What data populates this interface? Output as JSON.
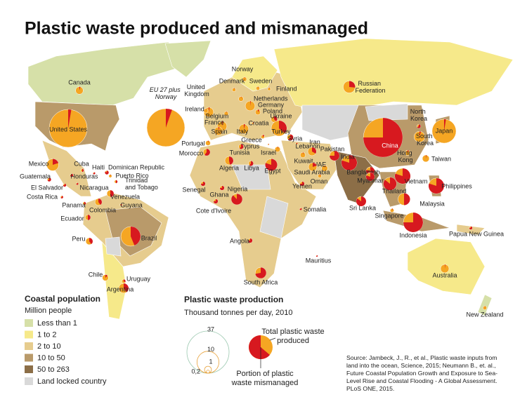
{
  "title": "Plastic waste produced and mismanaged",
  "countries": [
    {
      "name": "Canada",
      "total": 1.2,
      "mismanaged": 0.05
    },
    {
      "name": "United States",
      "total": 30,
      "mismanaged": 0.8
    },
    {
      "name": "EU 27 plus Norway",
      "total": 30,
      "mismanaged": 1.6
    },
    {
      "name": "United Kingdom",
      "total": 2,
      "mismanaged": 0.06
    },
    {
      "name": "Norway",
      "total": 0.4,
      "mismanaged": 0.01
    },
    {
      "name": "Denmark",
      "total": 0.3,
      "mismanaged": 0.01
    },
    {
      "name": "Sweden",
      "total": 0.3,
      "mismanaged": 0.01
    },
    {
      "name": "Finland",
      "total": 0.2,
      "mismanaged": 0.01
    },
    {
      "name": "Netherlands",
      "total": 0.5,
      "mismanaged": 0.01
    },
    {
      "name": "Germany",
      "total": 2,
      "mismanaged": 0.04
    },
    {
      "name": "Poland",
      "total": 0.6,
      "mismanaged": 0.05
    },
    {
      "name": "Ireland",
      "total": 0.4,
      "mismanaged": 0.01
    },
    {
      "name": "Belgium",
      "total": 0.4,
      "mismanaged": 0.01
    },
    {
      "name": "France",
      "total": 2,
      "mismanaged": 0.06
    },
    {
      "name": "Ukraine",
      "total": 0.8,
      "mismanaged": 0.3
    },
    {
      "name": "Croatia",
      "total": 0.15,
      "mismanaged": 0.02
    },
    {
      "name": "Italy",
      "total": 2,
      "mismanaged": 0.08
    },
    {
      "name": "Spain",
      "total": 1.5,
      "mismanaged": 0.05
    },
    {
      "name": "Portugal",
      "total": 0.5,
      "mismanaged": 0.02
    },
    {
      "name": "Turkey",
      "total": 5,
      "mismanaged": 1.8
    },
    {
      "name": "Greece",
      "total": 0.3,
      "mismanaged": 0.05
    },
    {
      "name": "Cyprus",
      "total": 0.05,
      "mismanaged": 0.01
    },
    {
      "name": "Syria",
      "total": 0.8,
      "mismanaged": 0.5
    },
    {
      "name": "Lebanon",
      "total": 0.1,
      "mismanaged": 0.03
    },
    {
      "name": "Morocco",
      "total": 1,
      "mismanaged": 0.6
    },
    {
      "name": "Tunisia",
      "total": 0.5,
      "mismanaged": 0.3
    },
    {
      "name": "Israel",
      "total": 0.6,
      "mismanaged": 0.02
    },
    {
      "name": "Iran",
      "total": 1.5,
      "mismanaged": 0.5
    },
    {
      "name": "Pakistan",
      "total": 2,
      "mismanaged": 1.5
    },
    {
      "name": "India",
      "total": 5,
      "mismanaged": 4
    },
    {
      "name": "China",
      "total": 32,
      "mismanaged": 24
    },
    {
      "name": "North Korea",
      "total": 0.3,
      "mismanaged": 0.2
    },
    {
      "name": "Japan",
      "total": 12,
      "mismanaged": 0.3
    },
    {
      "name": "South Korea",
      "total": 2.5,
      "mismanaged": 0.1
    },
    {
      "name": "Taiwan",
      "total": 1,
      "mismanaged": 0.03
    },
    {
      "name": "Hong Kong",
      "total": 0.6,
      "mismanaged": 0.05
    },
    {
      "name": "Algeria",
      "total": 1.5,
      "mismanaged": 0.7
    },
    {
      "name": "Libya",
      "total": 0.5,
      "mismanaged": 0.3
    },
    {
      "name": "Egypt",
      "total": 3,
      "mismanaged": 2.4
    },
    {
      "name": "Kuwait",
      "total": 0.6,
      "mismanaged": 0.02
    },
    {
      "name": "UAE",
      "total": 0.8,
      "mismanaged": 0.02
    },
    {
      "name": "Saudi Arabia",
      "total": 1.5,
      "mismanaged": 0.3
    },
    {
      "name": "Oman",
      "total": 0.3,
      "mismanaged": 0.02
    },
    {
      "name": "Yemen",
      "total": 0.4,
      "mismanaged": 0.3
    },
    {
      "name": "Bangladesh",
      "total": 1.5,
      "mismanaged": 1.2
    },
    {
      "name": "Myanmar",
      "total": 1.5,
      "mismanaged": 1.2
    },
    {
      "name": "Vietnam",
      "total": 5,
      "mismanaged": 4
    },
    {
      "name": "Thailand",
      "total": 3.5,
      "mismanaged": 3
    },
    {
      "name": "Philippines",
      "total": 5,
      "mismanaged": 4
    },
    {
      "name": "Mexico",
      "total": 3,
      "mismanaged": 0.6
    },
    {
      "name": "Cuba",
      "total": 0.2,
      "mismanaged": 0.1
    },
    {
      "name": "Haiti",
      "total": 0.1,
      "mismanaged": 0.08
    },
    {
      "name": "Dominican Republic",
      "total": 0.3,
      "mismanaged": 0.25
    },
    {
      "name": "Guatemala",
      "total": 0.3,
      "mismanaged": 0.2
    },
    {
      "name": "Honduras",
      "total": 0.2,
      "mismanaged": 0.15
    },
    {
      "name": "Puerto Rico",
      "total": 0.2,
      "mismanaged": 0.01
    },
    {
      "name": "Trinidad and Tobago",
      "total": 0.2,
      "mismanaged": 0.1
    },
    {
      "name": "El Salvador",
      "total": 0.2,
      "mismanaged": 0.15
    },
    {
      "name": "Nicaragua",
      "total": 0.1,
      "mismanaged": 0.08
    },
    {
      "name": "Costa Rica",
      "total": 0.15,
      "mismanaged": 0.1
    },
    {
      "name": "Venezuela",
      "total": 1,
      "mismanaged": 0.5
    },
    {
      "name": "Panama",
      "total": 0.2,
      "mismanaged": 0.1
    },
    {
      "name": "Guyana",
      "total": 0.1,
      "mismanaged": 0.05
    },
    {
      "name": "Colombia",
      "total": 1,
      "mismanaged": 0.4
    },
    {
      "name": "Senegal",
      "total": 0.4,
      "mismanaged": 0.3
    },
    {
      "name": "Ghana",
      "total": 0.4,
      "mismanaged": 0.3
    },
    {
      "name": "Nigeria",
      "total": 2.5,
      "mismanaged": 2.2
    },
    {
      "name": "Cote d'Ivoire",
      "total": 0.4,
      "mismanaged": 0.3
    },
    {
      "name": "Somalia",
      "total": 0.1,
      "mismanaged": 0.08
    },
    {
      "name": "Sri Lanka",
      "total": 2,
      "mismanaged": 1.7
    },
    {
      "name": "Malaysia",
      "total": 3,
      "mismanaged": 1.5
    },
    {
      "name": "Singapore",
      "total": 0.3,
      "mismanaged": 0.02
    },
    {
      "name": "Indonesia",
      "total": 8,
      "mismanaged": 6
    },
    {
      "name": "Papua New Guinea",
      "total": 0.2,
      "mismanaged": 0.15
    },
    {
      "name": "Ecuador",
      "total": 0.6,
      "mismanaged": 0.3
    },
    {
      "name": "Peru",
      "total": 1,
      "mismanaged": 0.4
    },
    {
      "name": "Brazil",
      "total": 8,
      "mismanaged": 3.5
    },
    {
      "name": "Angola",
      "total": 0.4,
      "mismanaged": 0.3
    },
    {
      "name": "Mauritius",
      "total": 0.05,
      "mismanaged": 0.04
    },
    {
      "name": "Chile",
      "total": 0.8,
      "mismanaged": 0.1
    },
    {
      "name": "Uruguay",
      "total": 0.3,
      "mismanaged": 0.1
    },
    {
      "name": "Argentina",
      "total": 2,
      "mismanaged": 0.8
    },
    {
      "name": "South Africa",
      "total": 2.5,
      "mismanaged": 1.8
    },
    {
      "name": "Australia",
      "total": 1.5,
      "mismanaged": 0.03
    },
    {
      "name": "New Zealand",
      "total": 0.3,
      "mismanaged": 0.01
    },
    {
      "name": "Russian Federation",
      "total": 3,
      "mismanaged": 0.8
    }
  ],
  "legend_population": {
    "title": "Coastal population",
    "subtitle": "Million people",
    "items": [
      "Less than 1",
      "1 to 2",
      "2 to 10",
      "10 to 50",
      "50 to 263"
    ],
    "landlocked": "Land locked country"
  },
  "legend_production": {
    "title": "Plastic waste production",
    "subtitle": "Thousand tonnes per day, 2010",
    "sizes": [
      37,
      10,
      1,
      {
        "value": 0.2,
        "label": "0,2"
      }
    ],
    "total_label": "Total plastic waste produced",
    "mismanaged_label": "Portion of plastic waste mismanaged"
  },
  "source": "Source: Jambeck, J., R., et al., Plastic waste inputs from land into the ocean, Science, 2015; Neumann B., et. al., Future Coastal Population Growth and Exposure to Sea-Level Rise and Coastal Flooding - A Global Assessment. PLoS ONE, 2015."
}
